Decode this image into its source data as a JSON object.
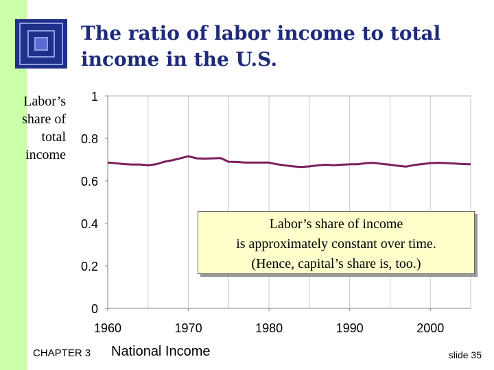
{
  "slide": {
    "title": "The ratio of labor income to total income in the U.S.",
    "title_lines": [
      "The ratio of labor income to total",
      "income in the U.S."
    ],
    "ylabel_lines": [
      "Labor’s",
      "share of",
      "total",
      "income"
    ],
    "callout_lines": [
      "Labor’s share of income",
      "is approximately constant over time.",
      "(Hence, capital’s share is, too.)"
    ],
    "footer": {
      "chapter": "CHAPTER 3",
      "title": "National Income",
      "slide": "slide 35"
    },
    "colors": {
      "accent_band": "#ccffaa",
      "title": "#1f2a7a",
      "line": "#7a1f5c",
      "callout_bg": "#ffffcc"
    }
  },
  "chart_data": {
    "type": "line",
    "x": [
      1960,
      1961,
      1962,
      1963,
      1964,
      1965,
      1966,
      1967,
      1968,
      1969,
      1970,
      1971,
      1972,
      1973,
      1974,
      1975,
      1976,
      1977,
      1978,
      1979,
      1980,
      1981,
      1982,
      1983,
      1984,
      1985,
      1986,
      1987,
      1988,
      1989,
      1990,
      1991,
      1992,
      1993,
      1994,
      1995,
      1996,
      1997,
      1998,
      1999,
      2000,
      2001,
      2002,
      2003,
      2004,
      2005
    ],
    "series": [
      {
        "values": [
          0.686,
          0.683,
          0.679,
          0.677,
          0.677,
          0.674,
          0.678,
          0.69,
          0.697,
          0.706,
          0.716,
          0.706,
          0.705,
          0.706,
          0.707,
          0.69,
          0.689,
          0.686,
          0.686,
          0.686,
          0.686,
          0.678,
          0.673,
          0.668,
          0.665,
          0.668,
          0.673,
          0.676,
          0.674,
          0.676,
          0.678,
          0.678,
          0.684,
          0.685,
          0.68,
          0.676,
          0.671,
          0.667,
          0.675,
          0.679,
          0.684,
          0.685,
          0.684,
          0.682,
          0.679,
          0.678
        ]
      }
    ],
    "xticks": [
      1960,
      1970,
      1980,
      1990,
      2000
    ],
    "yticks": [
      0,
      0.2,
      0.4,
      0.6,
      0.8,
      1
    ],
    "ytick_labels": [
      "0",
      "0.2",
      "0.4",
      "0.6",
      "0.8",
      "1"
    ],
    "xlim": [
      1960,
      2005
    ],
    "ylim": [
      0,
      1
    ],
    "grid": "vertical"
  }
}
